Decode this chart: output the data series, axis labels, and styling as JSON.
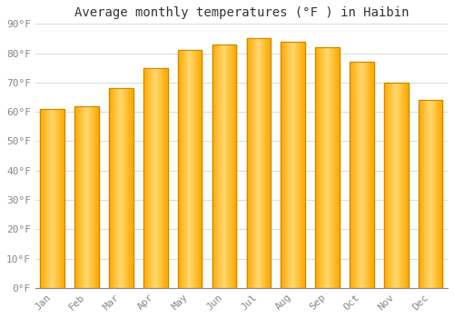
{
  "title": "Average monthly temperatures (°F ) in Haibin",
  "months": [
    "Jan",
    "Feb",
    "Mar",
    "Apr",
    "May",
    "Jun",
    "Jul",
    "Aug",
    "Sep",
    "Oct",
    "Nov",
    "Dec"
  ],
  "values": [
    61,
    62,
    68,
    75,
    81,
    83,
    85,
    84,
    82,
    77,
    70,
    64
  ],
  "bar_color_main": "#FFAA00",
  "bar_color_light": "#FFD870",
  "bar_edge_color": "#CC8800",
  "background_color": "#FFFFFF",
  "grid_color": "#DDDDDD",
  "ylim": [
    0,
    90
  ],
  "yticks": [
    0,
    10,
    20,
    30,
    40,
    50,
    60,
    70,
    80,
    90
  ],
  "ytick_labels": [
    "0°F",
    "10°F",
    "20°F",
    "30°F",
    "40°F",
    "50°F",
    "60°F",
    "70°F",
    "80°F",
    "90°F"
  ],
  "title_fontsize": 10,
  "tick_fontsize": 8,
  "tick_color": "#888888",
  "font_family": "monospace",
  "bar_width": 0.7,
  "figsize": [
    5.0,
    3.5
  ],
  "dpi": 100
}
